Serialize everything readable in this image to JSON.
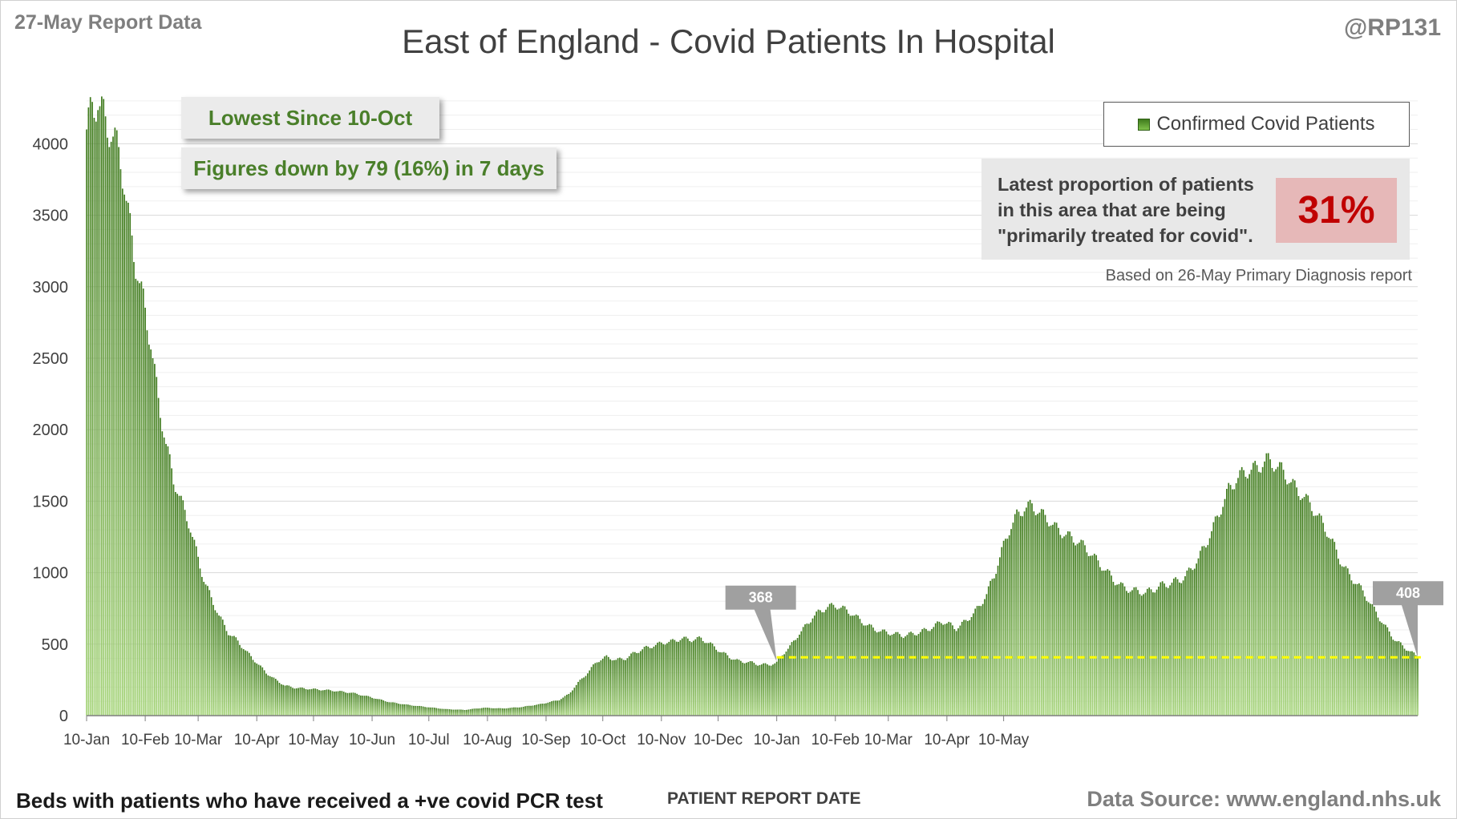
{
  "header": {
    "report_date": "27-May Report Data",
    "handle": "@RP131",
    "title": "East of England - Covid Patients In Hospital"
  },
  "callouts": {
    "lowest": "Lowest Since 10-Oct",
    "change": "Figures down by 79 (16%) in 7 days"
  },
  "proportion": {
    "text_lines": [
      "Latest proportion of patients",
      "in this area that are being",
      "\"primarily treated for covid\"."
    ],
    "value": "31%",
    "note": "Based on 26-May Primary Diagnosis report"
  },
  "footer": {
    "left": "Beds with patients who have received a +ve covid PCR test",
    "xlabel": "PATIENT REPORT DATE",
    "source": "Data Source: www.england.nhs.uk"
  },
  "colors": {
    "bar_top": "#3f7a1d",
    "bar_bottom": "#a6d57a",
    "reference_line": "#ffff00",
    "accent_text": "#4a7f2a",
    "highlight_red": "#c00000"
  },
  "chart_data": {
    "type": "bar",
    "series": [
      {
        "name": "Confirmed Covid Patients",
        "anchors": [
          [
            0,
            4100
          ],
          [
            3,
            4250
          ],
          [
            6,
            4300
          ],
          [
            10,
            4150
          ],
          [
            14,
            4050
          ],
          [
            18,
            3900
          ],
          [
            22,
            3500
          ],
          [
            26,
            3150
          ],
          [
            30,
            2900
          ],
          [
            34,
            2600
          ],
          [
            38,
            2200
          ],
          [
            42,
            1900
          ],
          [
            46,
            1650
          ],
          [
            50,
            1500
          ],
          [
            54,
            1350
          ],
          [
            58,
            1150
          ],
          [
            62,
            950
          ],
          [
            66,
            820
          ],
          [
            70,
            700
          ],
          [
            75,
            580
          ],
          [
            80,
            520
          ],
          [
            85,
            440
          ],
          [
            90,
            370
          ],
          [
            95,
            300
          ],
          [
            100,
            250
          ],
          [
            105,
            210
          ],
          [
            110,
            195
          ],
          [
            120,
            185
          ],
          [
            130,
            175
          ],
          [
            140,
            160
          ],
          [
            150,
            130
          ],
          [
            160,
            95
          ],
          [
            170,
            75
          ],
          [
            180,
            60
          ],
          [
            190,
            45
          ],
          [
            200,
            40
          ],
          [
            210,
            55
          ],
          [
            220,
            50
          ],
          [
            230,
            60
          ],
          [
            240,
            80
          ],
          [
            250,
            110
          ],
          [
            255,
            150
          ],
          [
            260,
            230
          ],
          [
            265,
            300
          ],
          [
            270,
            380
          ],
          [
            275,
            410
          ],
          [
            280,
            390
          ],
          [
            285,
            400
          ],
          [
            290,
            440
          ],
          [
            295,
            470
          ],
          [
            300,
            490
          ],
          [
            305,
            510
          ],
          [
            310,
            520
          ],
          [
            315,
            540
          ],
          [
            320,
            530
          ],
          [
            325,
            540
          ],
          [
            330,
            500
          ],
          [
            335,
            450
          ],
          [
            340,
            410
          ],
          [
            345,
            380
          ],
          [
            350,
            375
          ],
          [
            355,
            360
          ],
          [
            360,
            355
          ],
          [
            365,
            368
          ],
          [
            368,
            430
          ],
          [
            372,
            480
          ],
          [
            376,
            560
          ],
          [
            380,
            620
          ],
          [
            384,
            690
          ],
          [
            388,
            730
          ],
          [
            392,
            760
          ],
          [
            396,
            770
          ],
          [
            400,
            750
          ],
          [
            404,
            720
          ],
          [
            408,
            680
          ],
          [
            412,
            640
          ],
          [
            416,
            610
          ],
          [
            420,
            590
          ],
          [
            424,
            580
          ],
          [
            428,
            570
          ],
          [
            432,
            560
          ],
          [
            436,
            570
          ],
          [
            440,
            580
          ],
          [
            444,
            600
          ],
          [
            448,
            620
          ],
          [
            452,
            660
          ],
          [
            456,
            640
          ],
          [
            460,
            610
          ],
          [
            464,
            650
          ],
          [
            468,
            700
          ],
          [
            472,
            760
          ],
          [
            476,
            850
          ],
          [
            480,
            980
          ],
          [
            484,
            1150
          ],
          [
            488,
            1300
          ],
          [
            492,
            1400
          ],
          [
            496,
            1450
          ],
          [
            500,
            1470
          ],
          [
            504,
            1420
          ],
          [
            508,
            1380
          ],
          [
            512,
            1320
          ],
          [
            516,
            1280
          ],
          [
            520,
            1250
          ],
          [
            524,
            1220
          ],
          [
            528,
            1180
          ],
          [
            532,
            1120
          ],
          [
            536,
            1060
          ],
          [
            540,
            1000
          ],
          [
            544,
            940
          ],
          [
            548,
            900
          ],
          [
            552,
            880
          ],
          [
            556,
            870
          ],
          [
            560,
            860
          ],
          [
            564,
            880
          ],
          [
            568,
            910
          ],
          [
            572,
            920
          ],
          [
            576,
            940
          ],
          [
            580,
            960
          ],
          [
            584,
            1020
          ],
          [
            588,
            1100
          ],
          [
            592,
            1200
          ],
          [
            596,
            1320
          ],
          [
            600,
            1450
          ],
          [
            604,
            1580
          ],
          [
            608,
            1650
          ],
          [
            612,
            1700
          ],
          [
            616,
            1720
          ],
          [
            620,
            1740
          ],
          [
            624,
            1790
          ],
          [
            628,
            1760
          ],
          [
            632,
            1720
          ],
          [
            636,
            1650
          ],
          [
            640,
            1580
          ],
          [
            644,
            1530
          ],
          [
            648,
            1460
          ],
          [
            652,
            1380
          ],
          [
            656,
            1290
          ],
          [
            660,
            1180
          ],
          [
            664,
            1060
          ],
          [
            668,
            980
          ],
          [
            672,
            920
          ],
          [
            676,
            850
          ],
          [
            680,
            760
          ],
          [
            684,
            680
          ],
          [
            688,
            600
          ],
          [
            692,
            530
          ],
          [
            696,
            487
          ],
          [
            700,
            450
          ],
          [
            704,
            408
          ]
        ]
      }
    ],
    "x_tick_labels": [
      "10-Jan",
      "10-Feb",
      "10-Mar",
      "10-Apr",
      "10-May",
      "10-Jun",
      "10-Jul",
      "10-Aug",
      "10-Sep",
      "10-Oct",
      "10-Nov",
      "10-Dec",
      "10-Jan",
      "10-Feb",
      "10-Mar",
      "10-Apr",
      "10-May"
    ],
    "x_tick_days": [
      0,
      31,
      59,
      90,
      120,
      151,
      181,
      212,
      243,
      273,
      304,
      334,
      365,
      396,
      424,
      455,
      485
    ],
    "y_ticks": [
      0,
      500,
      1000,
      1500,
      2000,
      2500,
      3000,
      3500,
      4000
    ],
    "ylim": [
      0,
      4400
    ],
    "data_labels": [
      {
        "index": 365,
        "text": "368"
      },
      {
        "index": 704,
        "text": "408"
      }
    ],
    "reference_value": 408,
    "reference_start_index": 365,
    "grid": true,
    "legend": "top-right"
  }
}
